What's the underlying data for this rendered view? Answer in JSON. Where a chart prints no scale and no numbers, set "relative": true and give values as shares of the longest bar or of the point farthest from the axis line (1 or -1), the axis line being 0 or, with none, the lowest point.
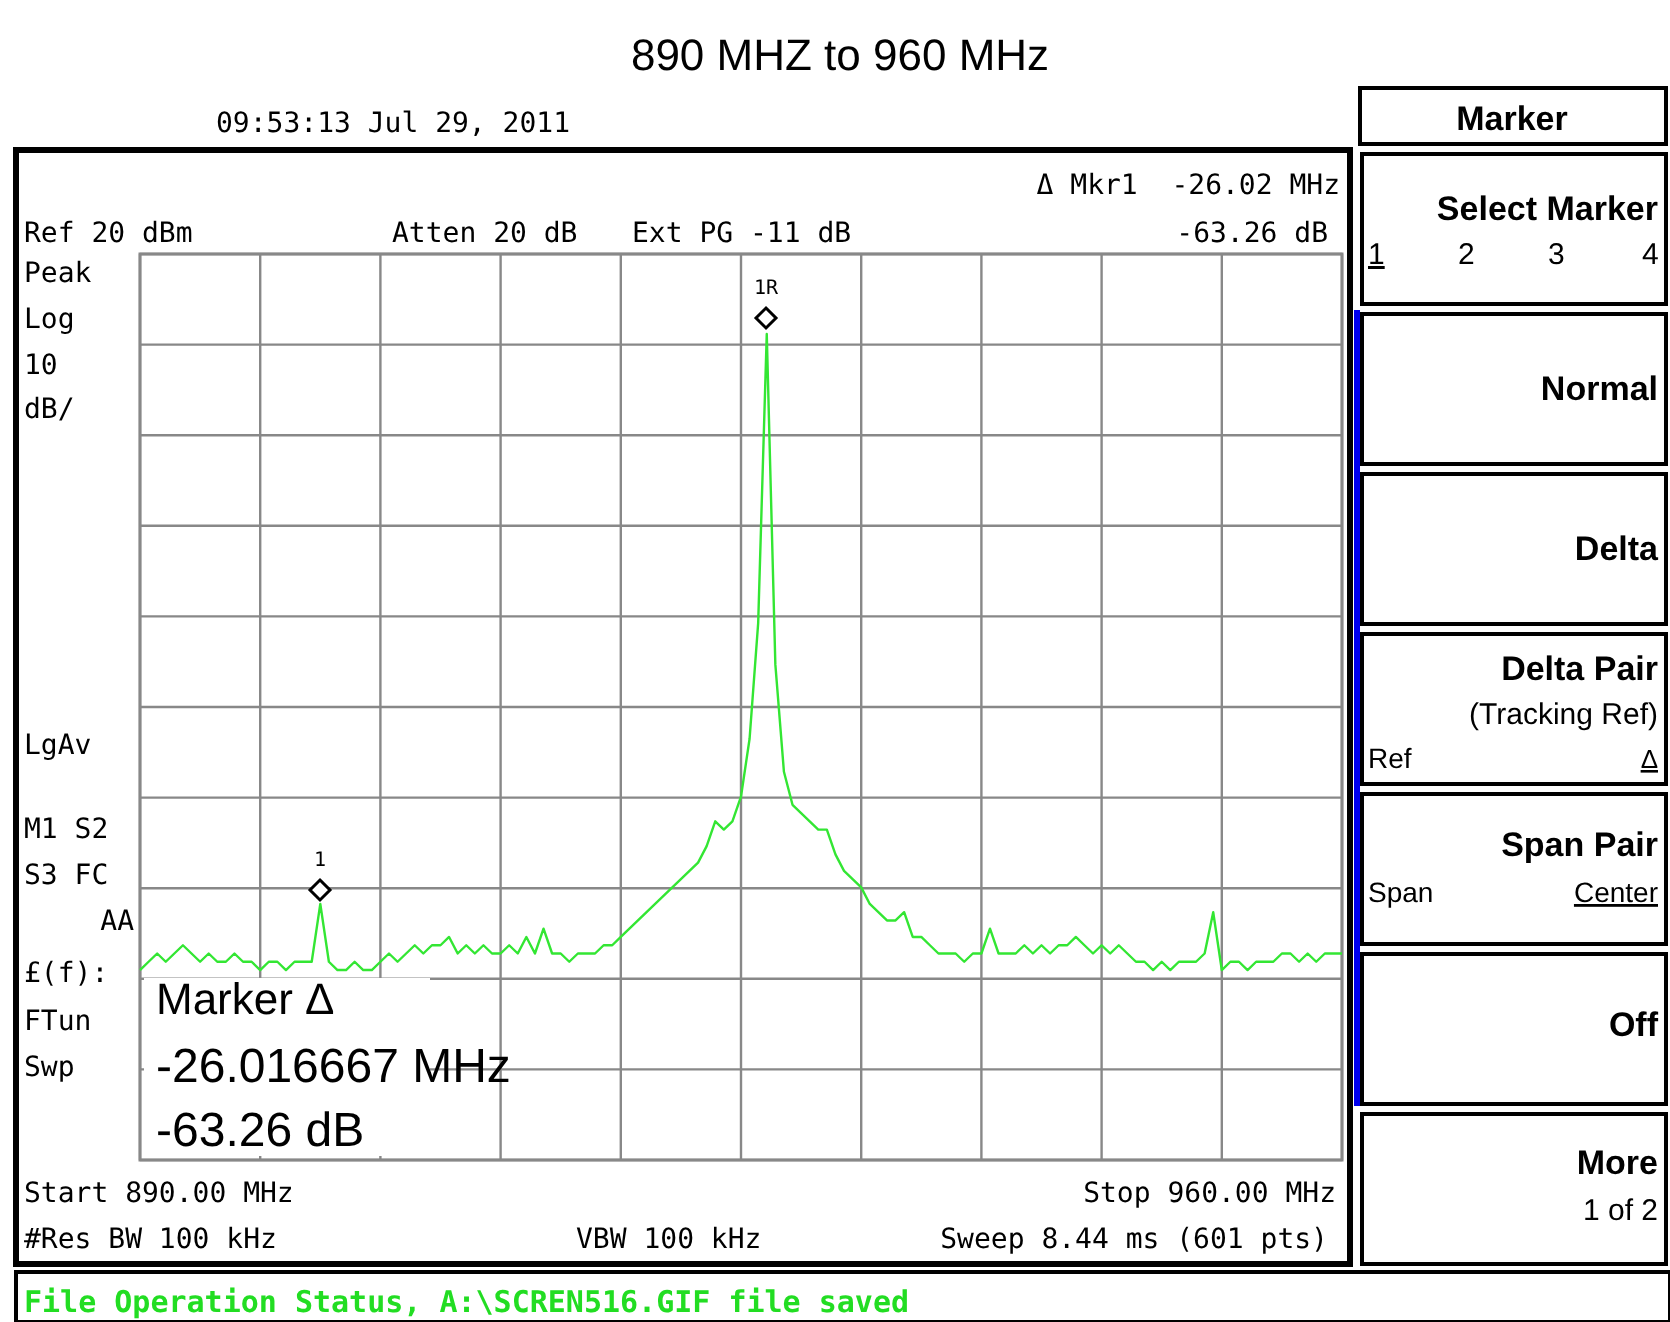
{
  "chart_data": {
    "type": "line",
    "title": "890 MHZ to 960 MHz",
    "categories": [
      null,
      null,
      null,
      null,
      null,
      null,
      null,
      null,
      null,
      null,
      null,
      null,
      null,
      null,
      null,
      null,
      null,
      null,
      null,
      null,
      null,
      null,
      null,
      null,
      null,
      null,
      null,
      null,
      null,
      null,
      null,
      null,
      null,
      null,
      null,
      null,
      null,
      null,
      null,
      null,
      null,
      null,
      null,
      null,
      null,
      null,
      null,
      null,
      null,
      null,
      null,
      null,
      null,
      null,
      null,
      null,
      null,
      null,
      null,
      null,
      null,
      null,
      null,
      null,
      null,
      null,
      null,
      null,
      null,
      null,
      null,
      null,
      null,
      null,
      null,
      null,
      null,
      null,
      null,
      null,
      null,
      null,
      null,
      null,
      null,
      null,
      null,
      null,
      null,
      null,
      null,
      null,
      null,
      null,
      null,
      null,
      null,
      null,
      null,
      null,
      null,
      null,
      null,
      null,
      null,
      null,
      null,
      null,
      null,
      null,
      null,
      null,
      null,
      null,
      null,
      null,
      null,
      null,
      null,
      null,
      null,
      null,
      null,
      null,
      null,
      null,
      null,
      null,
      null,
      null,
      null,
      null,
      null,
      null,
      null,
      null,
      null,
      null,
      null,
      null,
      null
    ],
    "relative": true,
    "grid": true,
    "marker": "none",
    "line_style": "solid",
    "series": [
      {
        "color": "#33e633",
        "values": [
          0.23,
          0.24,
          0.25,
          0.24,
          0.25,
          0.26,
          0.25,
          0.24,
          0.25,
          0.24,
          0.24,
          0.25,
          0.24,
          0.24,
          0.23,
          0.24,
          0.24,
          0.23,
          0.24,
          0.24,
          0.24,
          0.31,
          0.24,
          0.23,
          0.23,
          0.24,
          0.23,
          0.23,
          0.24,
          0.25,
          0.24,
          0.25,
          0.26,
          0.25,
          0.26,
          0.26,
          0.27,
          0.25,
          0.26,
          0.25,
          0.26,
          0.25,
          0.25,
          0.26,
          0.25,
          0.27,
          0.25,
          0.28,
          0.25,
          0.25,
          0.24,
          0.25,
          0.25,
          0.25,
          0.26,
          0.26,
          0.27,
          0.28,
          0.29,
          0.3,
          0.31,
          0.32,
          0.33,
          0.34,
          0.35,
          0.36,
          0.38,
          0.41,
          0.4,
          0.41,
          0.44,
          0.51,
          0.65,
          1,
          0.6,
          0.47,
          0.43,
          0.42,
          0.41,
          0.4,
          0.4,
          0.37,
          0.35,
          0.34,
          0.33,
          0.31,
          0.3,
          0.29,
          0.29,
          0.3,
          0.27,
          0.27,
          0.26,
          0.25,
          0.25,
          0.25,
          0.24,
          0.25,
          0.25,
          0.28,
          0.25,
          0.25,
          0.25,
          0.26,
          0.25,
          0.26,
          0.25,
          0.26,
          0.26,
          0.27,
          0.26,
          0.25,
          0.26,
          0.25,
          0.26,
          0.25,
          0.24,
          0.24,
          0.23,
          0.24,
          0.23,
          0.24,
          0.24,
          0.24,
          0.25,
          0.3,
          0.23,
          0.24,
          0.24,
          0.23,
          0.24,
          0.24,
          0.24,
          0.25,
          0.25,
          0.24,
          0.25,
          0.24,
          0.25,
          0.25,
          0.25
        ]
      }
    ],
    "annotations": [
      "1R",
      "1",
      "Ref 20 dBm",
      "09:53:13 Jul 29, 2011",
      "Atten 20 dB",
      "Ext PG -11 dB",
      "Δ Mkr1  -26.02 MHz",
      "-63.26 dB",
      "Peak",
      "Log",
      "10",
      "dB/",
      "LgAv",
      "M1 S2",
      "S3 FC",
      "AA",
      "£(f):",
      "FTun",
      "Swp",
      "Marker Δ",
      "-26.016667 MHz",
      "-63.26 dB",
      "Start 890.00 MHz",
      "Stop 960.00 MHz",
      "#Res BW 100 kHz",
      "VBW 100 kHz",
      "Sweep 8.44 ms (601 pts)",
      "File Operation Status, A:\\SCREN516.GIF file saved",
      "Marker",
      "Select Marker",
      "1",
      "2",
      "3",
      "4",
      "Normal",
      "Delta",
      "Delta Pair",
      "(Tracking Ref)",
      "Ref",
      "Δ",
      "Span Pair",
      "Span",
      "Center",
      "Off",
      "More",
      "1 of 2"
    ]
  }
}
